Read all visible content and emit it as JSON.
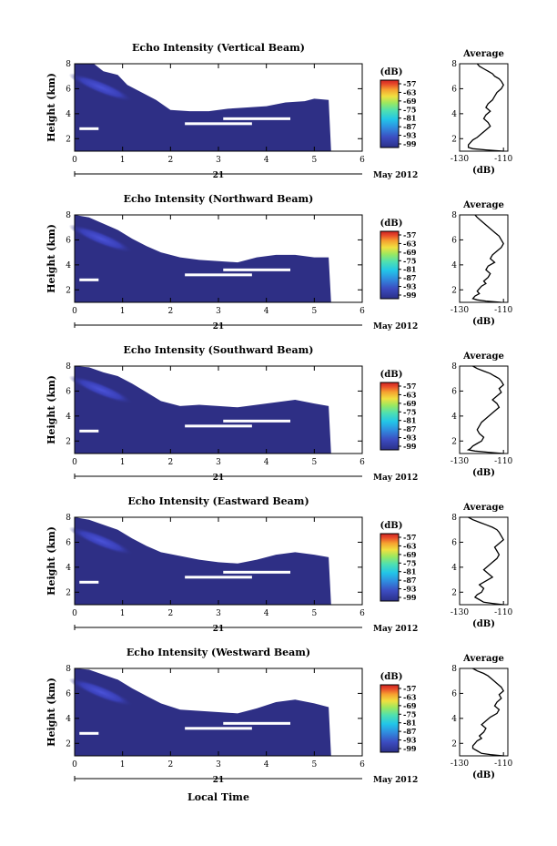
{
  "figure": {
    "xlabel": "Local Time",
    "date_left": "21",
    "date_right": "May 2012",
    "colorbar_unit": "(dB)",
    "colorbar_ticks": [
      "-57",
      "-63",
      "-69",
      "-75",
      "-81",
      "-87",
      "-93",
      "-99"
    ],
    "profile_title": "Average",
    "profile_xlabel": "(dB)",
    "colors": {
      "background_field": "#2e2f85",
      "echo_core": "#3f45c6",
      "colorbar": [
        "#2b2f88",
        "#3c4cc0",
        "#2f8fe0",
        "#22c6e8",
        "#50e0b0",
        "#9be860",
        "#f0e040",
        "#f6a030",
        "#e84a2a",
        "#cc2222"
      ]
    }
  },
  "chart_data": [
    {
      "type": "heatmap",
      "title": "Echo Intensity (Vertical Beam)",
      "ylabel": "Height (km)",
      "xlim": [
        0,
        6
      ],
      "ylim": [
        1,
        8
      ],
      "xticks": [
        0,
        1,
        2,
        3,
        4,
        5,
        6
      ],
      "yticks": [
        2,
        4,
        6,
        8
      ],
      "colorbar_range": [
        -99,
        -57
      ],
      "echo_top_km": [
        [
          0,
          8
        ],
        [
          0.4,
          8
        ],
        [
          0.6,
          7.4
        ],
        [
          0.9,
          7.1
        ],
        [
          1.1,
          6.3
        ],
        [
          1.4,
          5.7
        ],
        [
          1.7,
          5.1
        ],
        [
          2.0,
          4.3
        ],
        [
          2.4,
          4.2
        ],
        [
          2.8,
          4.2
        ],
        [
          3.2,
          4.4
        ],
        [
          3.6,
          4.5
        ],
        [
          4.0,
          4.6
        ],
        [
          4.4,
          4.9
        ],
        [
          4.8,
          5.0
        ],
        [
          5.0,
          5.2
        ],
        [
          5.3,
          5.1
        ]
      ],
      "data_end_hour": 5.35,
      "profile": {
        "xlim": [
          -130,
          -108
        ],
        "ylim": [
          1,
          8
        ],
        "xticks": [
          -130,
          -110
        ],
        "yticks": [
          2,
          4,
          6,
          8
        ],
        "x_dB": [
          -122,
          -121,
          -119,
          -117,
          -115,
          -114,
          -112,
          -111,
          -110,
          -111,
          -113,
          -114,
          -115,
          -117,
          -118,
          -116,
          -118,
          -119,
          -117,
          -116,
          -118,
          -120,
          -122,
          -124,
          -125,
          -126,
          -126,
          -124,
          -118,
          -110
        ],
        "y_km": [
          8,
          7.8,
          7.6,
          7.4,
          7.2,
          7.0,
          6.8,
          6.6,
          6.3,
          6.0,
          5.7,
          5.4,
          5.1,
          4.8,
          4.5,
          4.2,
          3.9,
          3.6,
          3.3,
          3.0,
          2.7,
          2.4,
          2.1,
          1.9,
          1.7,
          1.5,
          1.3,
          1.2,
          1.1,
          1.0
        ]
      }
    },
    {
      "type": "heatmap",
      "title": "Echo Intensity (Northward Beam)",
      "ylabel": "Height (km)",
      "xlim": [
        0,
        6
      ],
      "ylim": [
        1,
        8
      ],
      "xticks": [
        0,
        1,
        2,
        3,
        4,
        5,
        6
      ],
      "yticks": [
        2,
        4,
        6,
        8
      ],
      "colorbar_range": [
        -99,
        -57
      ],
      "echo_top_km": [
        [
          0,
          8
        ],
        [
          0.3,
          7.8
        ],
        [
          0.6,
          7.3
        ],
        [
          0.9,
          6.8
        ],
        [
          1.2,
          6.1
        ],
        [
          1.5,
          5.5
        ],
        [
          1.8,
          5.0
        ],
        [
          2.2,
          4.6
        ],
        [
          2.6,
          4.4
        ],
        [
          3.0,
          4.3
        ],
        [
          3.4,
          4.2
        ],
        [
          3.8,
          4.6
        ],
        [
          4.2,
          4.8
        ],
        [
          4.6,
          4.8
        ],
        [
          5.0,
          4.6
        ],
        [
          5.3,
          4.6
        ]
      ],
      "data_end_hour": 5.35,
      "profile": {
        "xlim": [
          -130,
          -108
        ],
        "ylim": [
          1,
          8
        ],
        "xticks": [
          -130,
          -110
        ],
        "yticks": [
          2,
          4,
          6,
          8
        ],
        "x_dB": [
          -123,
          -122,
          -120,
          -118,
          -116,
          -114,
          -112,
          -111,
          -110,
          -111,
          -113,
          -115,
          -116,
          -114,
          -117,
          -118,
          -116,
          -117,
          -119,
          -118,
          -120,
          -121,
          -122,
          -121,
          -123,
          -124,
          -122,
          -118,
          -111
        ],
        "y_km": [
          8,
          7.8,
          7.5,
          7.2,
          6.9,
          6.6,
          6.3,
          6.0,
          5.7,
          5.4,
          5.1,
          4.8,
          4.5,
          4.2,
          3.9,
          3.6,
          3.3,
          3.0,
          2.7,
          2.5,
          2.3,
          2.1,
          1.9,
          1.7,
          1.5,
          1.3,
          1.2,
          1.1,
          1.0
        ]
      }
    },
    {
      "type": "heatmap",
      "title": "Echo Intensity (Southward Beam)",
      "ylabel": "Height (km)",
      "xlim": [
        0,
        6
      ],
      "ylim": [
        1,
        8
      ],
      "xticks": [
        0,
        1,
        2,
        3,
        4,
        5,
        6
      ],
      "yticks": [
        2,
        4,
        6,
        8
      ],
      "colorbar_range": [
        -99,
        -57
      ],
      "echo_top_km": [
        [
          0,
          8
        ],
        [
          0.3,
          7.9
        ],
        [
          0.6,
          7.5
        ],
        [
          0.9,
          7.2
        ],
        [
          1.2,
          6.6
        ],
        [
          1.5,
          5.9
        ],
        [
          1.8,
          5.2
        ],
        [
          2.2,
          4.8
        ],
        [
          2.6,
          4.9
        ],
        [
          3.0,
          4.8
        ],
        [
          3.4,
          4.7
        ],
        [
          3.8,
          4.9
        ],
        [
          4.2,
          5.1
        ],
        [
          4.6,
          5.3
        ],
        [
          5.0,
          5.0
        ],
        [
          5.3,
          4.8
        ]
      ],
      "data_end_hour": 5.35,
      "profile": {
        "xlim": [
          -130,
          -108
        ],
        "ylim": [
          1,
          8
        ],
        "xticks": [
          -130,
          -110
        ],
        "yticks": [
          2,
          4,
          6,
          8
        ],
        "x_dB": [
          -124,
          -122,
          -119,
          -116,
          -114,
          -112,
          -111,
          -110,
          -112,
          -111,
          -113,
          -115,
          -113,
          -112,
          -114,
          -116,
          -118,
          -120,
          -121,
          -122,
          -121,
          -119,
          -120,
          -122,
          -124,
          -125,
          -126,
          -123,
          -117,
          -110
        ],
        "y_km": [
          8,
          7.8,
          7.6,
          7.4,
          7.2,
          7.0,
          6.8,
          6.5,
          6.2,
          5.9,
          5.6,
          5.3,
          5.0,
          4.7,
          4.4,
          4.1,
          3.8,
          3.5,
          3.2,
          2.9,
          2.6,
          2.3,
          2.0,
          1.8,
          1.6,
          1.4,
          1.3,
          1.2,
          1.1,
          1.0
        ]
      }
    },
    {
      "type": "heatmap",
      "title": "Echo Intensity (Eastward Beam)",
      "ylabel": "Height (km)",
      "xlim": [
        0,
        6
      ],
      "ylim": [
        1,
        8
      ],
      "xticks": [
        0,
        1,
        2,
        3,
        4,
        5,
        6
      ],
      "yticks": [
        2,
        4,
        6,
        8
      ],
      "colorbar_range": [
        -99,
        -57
      ],
      "echo_top_km": [
        [
          0,
          8
        ],
        [
          0.3,
          7.8
        ],
        [
          0.6,
          7.4
        ],
        [
          0.9,
          7.0
        ],
        [
          1.2,
          6.3
        ],
        [
          1.5,
          5.7
        ],
        [
          1.8,
          5.2
        ],
        [
          2.2,
          4.9
        ],
        [
          2.6,
          4.6
        ],
        [
          3.0,
          4.4
        ],
        [
          3.4,
          4.3
        ],
        [
          3.8,
          4.6
        ],
        [
          4.2,
          5.0
        ],
        [
          4.6,
          5.2
        ],
        [
          5.0,
          5.0
        ],
        [
          5.3,
          4.8
        ]
      ],
      "data_end_hour": 5.35,
      "profile": {
        "xlim": [
          -130,
          -108
        ],
        "ylim": [
          1,
          8
        ],
        "xticks": [
          -130,
          -110
        ],
        "yticks": [
          2,
          4,
          6,
          8
        ],
        "x_dB": [
          -126,
          -124,
          -121,
          -118,
          -115,
          -113,
          -112,
          -111,
          -110,
          -112,
          -114,
          -113,
          -112,
          -113,
          -115,
          -117,
          -119,
          -117,
          -115,
          -118,
          -121,
          -119,
          -120,
          -122,
          -123,
          -121,
          -119,
          -115,
          -110
        ],
        "y_km": [
          8,
          7.8,
          7.6,
          7.4,
          7.2,
          7.0,
          6.8,
          6.5,
          6.2,
          5.9,
          5.6,
          5.3,
          5.0,
          4.7,
          4.4,
          4.1,
          3.8,
          3.5,
          3.2,
          2.9,
          2.6,
          2.3,
          2.0,
          1.8,
          1.6,
          1.4,
          1.2,
          1.1,
          1.0
        ]
      }
    },
    {
      "type": "heatmap",
      "title": "Echo Intensity (Westward Beam)",
      "ylabel": "Height (km)",
      "xlim": [
        0,
        6
      ],
      "ylim": [
        1,
        8
      ],
      "xticks": [
        0,
        1,
        2,
        3,
        4,
        5,
        6
      ],
      "yticks": [
        2,
        4,
        6,
        8
      ],
      "colorbar_range": [
        -99,
        -57
      ],
      "echo_top_km": [
        [
          0,
          8
        ],
        [
          0.3,
          7.9
        ],
        [
          0.6,
          7.5
        ],
        [
          0.9,
          7.1
        ],
        [
          1.2,
          6.4
        ],
        [
          1.5,
          5.8
        ],
        [
          1.8,
          5.2
        ],
        [
          2.2,
          4.7
        ],
        [
          2.6,
          4.6
        ],
        [
          3.0,
          4.5
        ],
        [
          3.4,
          4.4
        ],
        [
          3.8,
          4.8
        ],
        [
          4.2,
          5.3
        ],
        [
          4.6,
          5.5
        ],
        [
          5.0,
          5.2
        ],
        [
          5.3,
          4.9
        ]
      ],
      "data_end_hour": 5.35,
      "profile": {
        "xlim": [
          -130,
          -108
        ],
        "ylim": [
          1,
          8
        ],
        "xticks": [
          -130,
          -110
        ],
        "yticks": [
          2,
          4,
          6,
          8
        ],
        "x_dB": [
          -124,
          -122,
          -119,
          -117,
          -115,
          -113,
          -111,
          -110,
          -112,
          -111,
          -113,
          -114,
          -112,
          -113,
          -116,
          -118,
          -120,
          -118,
          -119,
          -121,
          -120,
          -122,
          -123,
          -124,
          -124,
          -122,
          -120,
          -116,
          -110
        ],
        "y_km": [
          8,
          7.8,
          7.6,
          7.4,
          7.1,
          6.8,
          6.5,
          6.2,
          5.9,
          5.6,
          5.3,
          5.0,
          4.7,
          4.4,
          4.1,
          3.8,
          3.5,
          3.2,
          2.9,
          2.6,
          2.4,
          2.2,
          2.0,
          1.8,
          1.6,
          1.4,
          1.2,
          1.1,
          1.0
        ]
      }
    }
  ]
}
